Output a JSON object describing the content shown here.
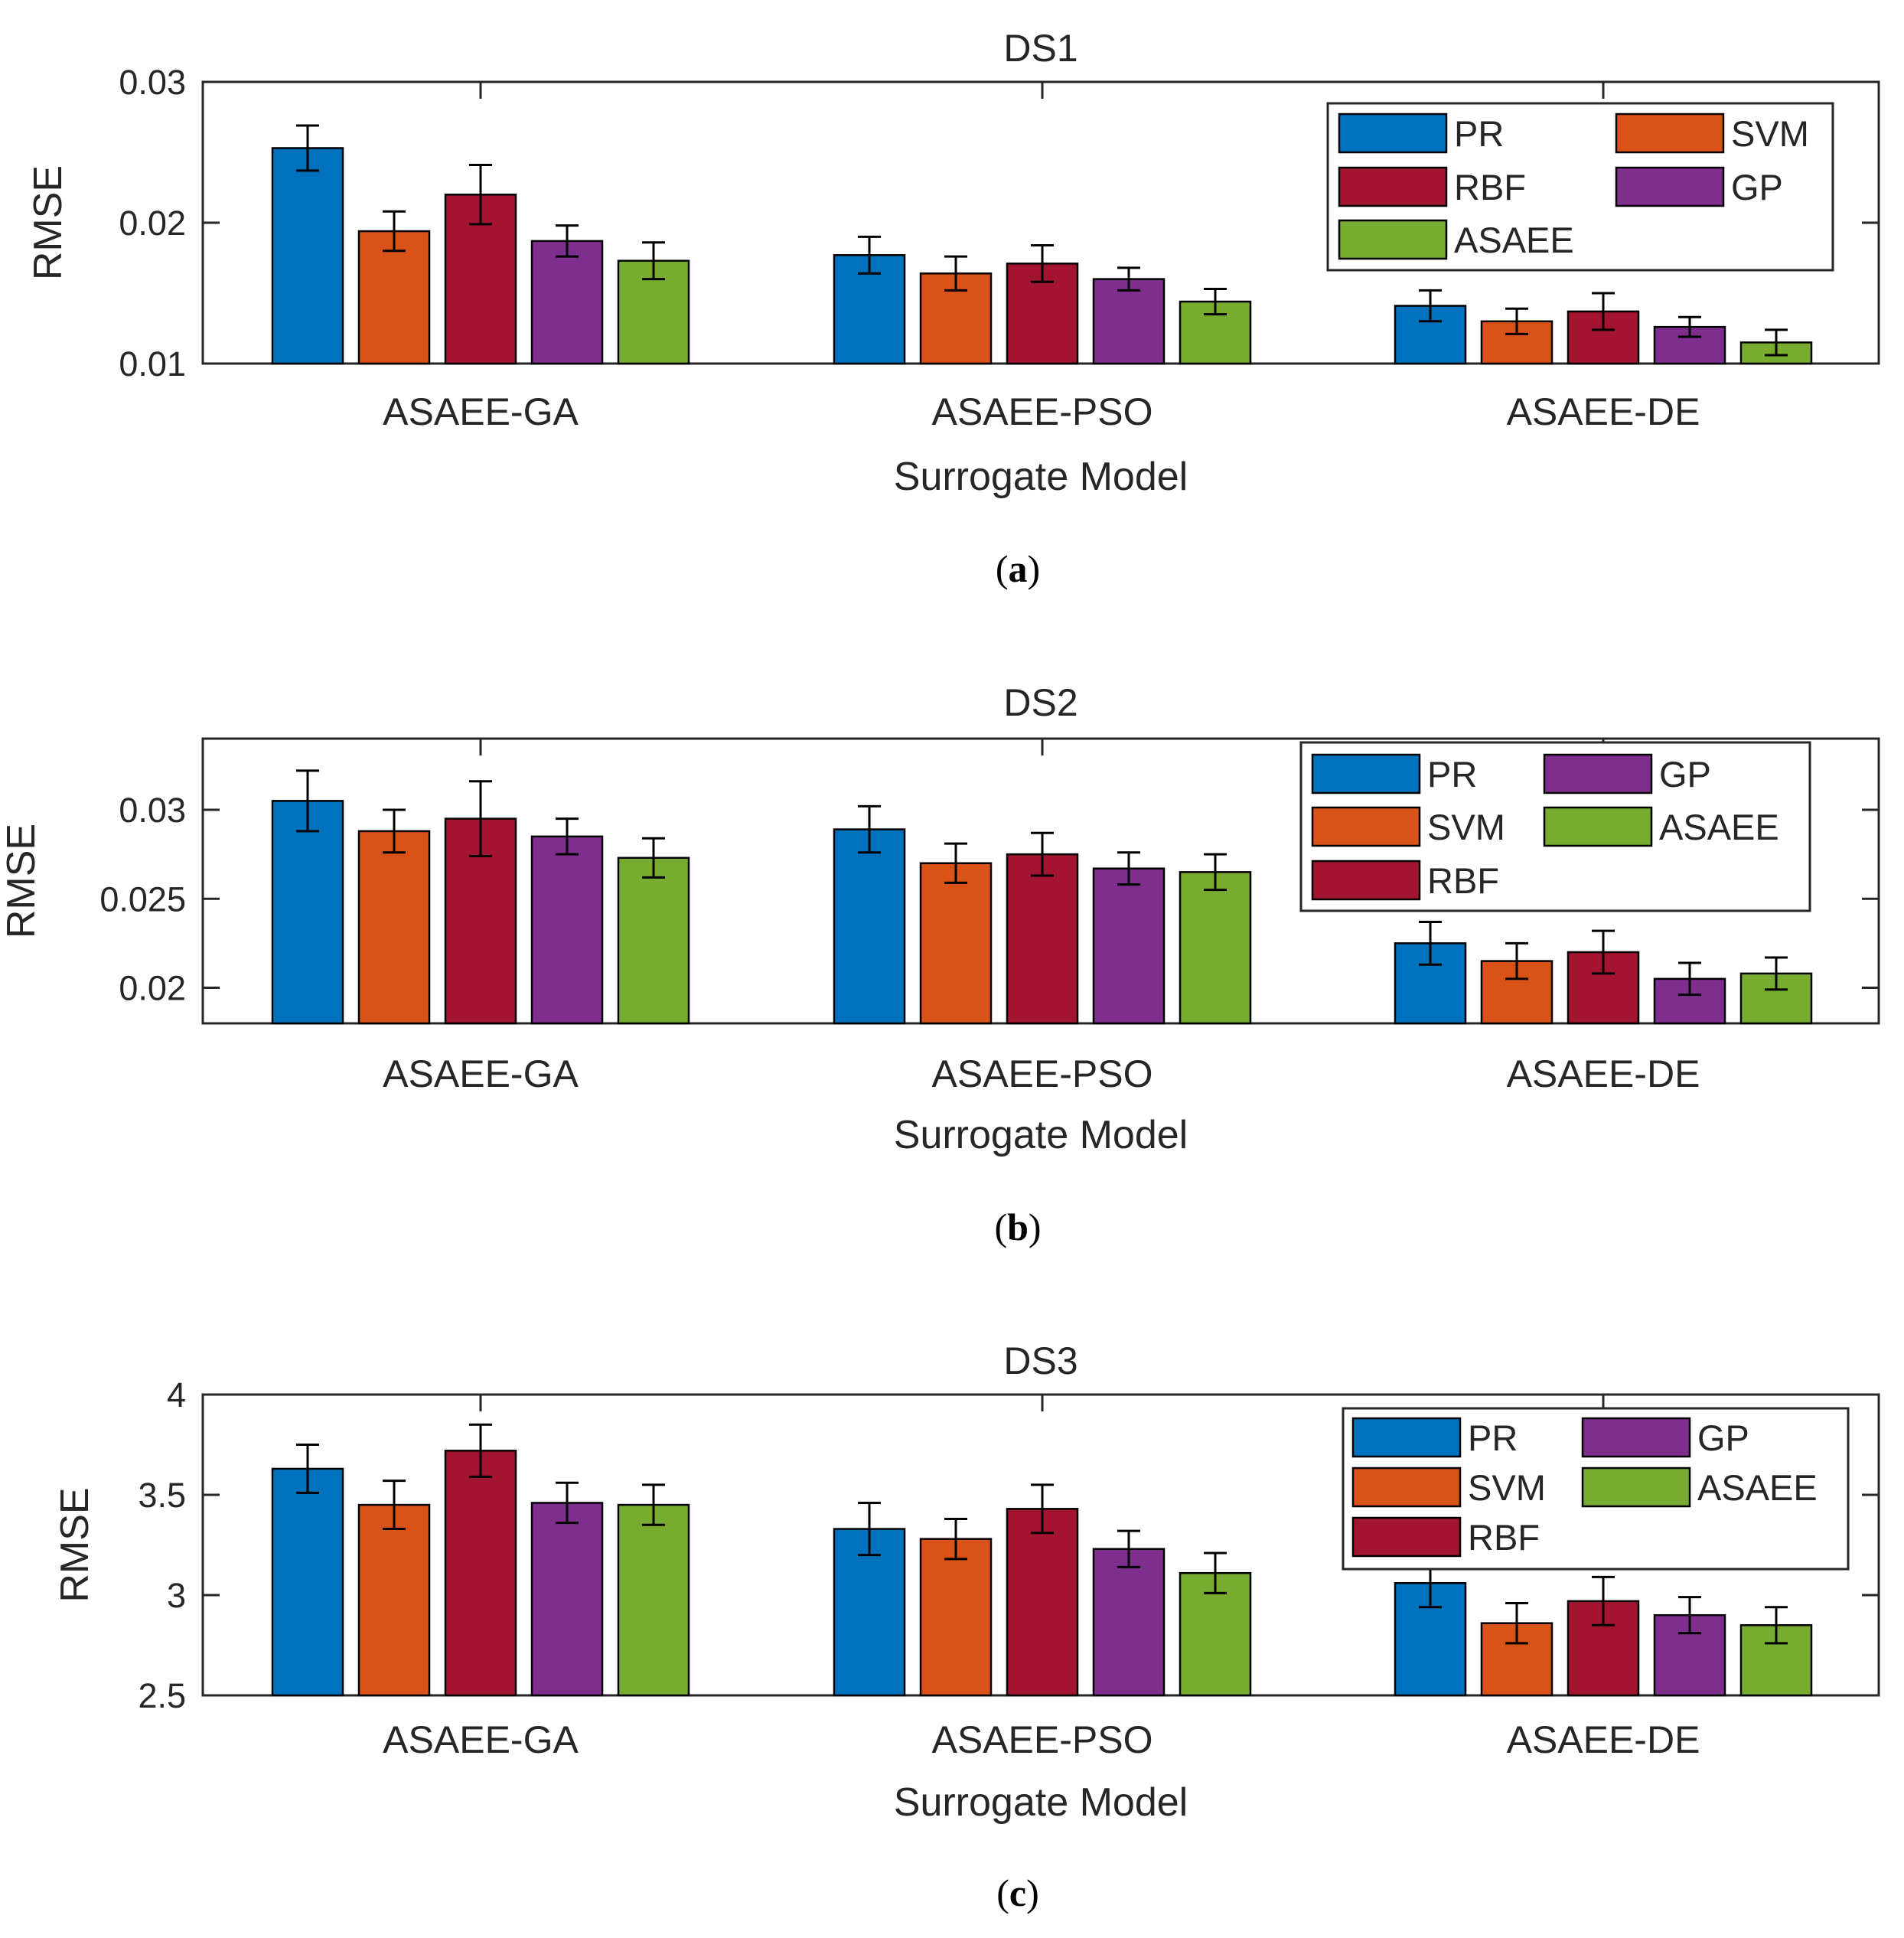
{
  "figure": {
    "captions": [
      "(a)",
      "(b)",
      "(c)"
    ]
  },
  "legend_order_by_panel": [
    [
      "PR",
      "SVM",
      "RBF",
      "GP",
      "ASAEE"
    ],
    [
      "PR",
      "GP",
      "SVM",
      "ASAEE",
      "RBF"
    ],
    [
      "PR",
      "GP",
      "SVM",
      "ASAEE",
      "RBF"
    ]
  ],
  "colors": {
    "PR": "#0072BD",
    "SVM": "#D95319",
    "RBF": "#A2142F",
    "GP": "#7E2F8E",
    "ASAEE": "#77AC30"
  },
  "chart_data": [
    {
      "type": "bar",
      "title": "DS1",
      "xlabel": "Surrogate Model",
      "ylabel": "RMSE",
      "ylim": [
        0.01,
        0.03
      ],
      "yticks": [
        0.01,
        0.02,
        0.03
      ],
      "ytick_labels": [
        "0.01",
        "0.02",
        "0.03"
      ],
      "categories": [
        "ASAEE-GA",
        "ASAEE-PSO",
        "ASAEE-DE"
      ],
      "legend_position": "top-right",
      "series": [
        {
          "name": "PR",
          "values": [
            0.0253,
            0.0177,
            0.0141
          ],
          "errors": [
            0.0016,
            0.0013,
            0.0011
          ]
        },
        {
          "name": "SVM",
          "values": [
            0.0194,
            0.0164,
            0.013
          ],
          "errors": [
            0.0014,
            0.0012,
            0.0009
          ]
        },
        {
          "name": "RBF",
          "values": [
            0.022,
            0.0171,
            0.0137
          ],
          "errors": [
            0.0021,
            0.0013,
            0.0013
          ]
        },
        {
          "name": "GP",
          "values": [
            0.0187,
            0.016,
            0.0126
          ],
          "errors": [
            0.0011,
            0.0008,
            0.0007
          ]
        },
        {
          "name": "ASAEE",
          "values": [
            0.0173,
            0.0144,
            0.0115
          ],
          "errors": [
            0.0013,
            0.0009,
            0.0009
          ]
        }
      ]
    },
    {
      "type": "bar",
      "title": "DS2",
      "xlabel": "Surrogate Model",
      "ylabel": "RMSE",
      "ylim": [
        0.018,
        0.034
      ],
      "yticks": [
        0.02,
        0.025,
        0.03
      ],
      "ytick_labels": [
        "0.02",
        "0.025",
        "0.03"
      ],
      "categories": [
        "ASAEE-GA",
        "ASAEE-PSO",
        "ASAEE-DE"
      ],
      "legend_position": "top-right",
      "series": [
        {
          "name": "PR",
          "values": [
            0.0305,
            0.0289,
            0.0225
          ],
          "errors": [
            0.0017,
            0.0013,
            0.0012
          ]
        },
        {
          "name": "SVM",
          "values": [
            0.0288,
            0.027,
            0.0215
          ],
          "errors": [
            0.0012,
            0.0011,
            0.001
          ]
        },
        {
          "name": "RBF",
          "values": [
            0.0295,
            0.0275,
            0.022
          ],
          "errors": [
            0.0021,
            0.0012,
            0.0012
          ]
        },
        {
          "name": "GP",
          "values": [
            0.0285,
            0.0267,
            0.0205
          ],
          "errors": [
            0.001,
            0.0009,
            0.0009
          ]
        },
        {
          "name": "ASAEE",
          "values": [
            0.0273,
            0.0265,
            0.0208
          ],
          "errors": [
            0.0011,
            0.001,
            0.0009
          ]
        }
      ]
    },
    {
      "type": "bar",
      "title": "DS3",
      "xlabel": "Surrogate Model",
      "ylabel": "RMSE",
      "ylim": [
        2.5,
        4.0
      ],
      "yticks": [
        2.5,
        3.0,
        3.5,
        4.0
      ],
      "ytick_labels": [
        "2.5",
        "3",
        "3.5",
        "4"
      ],
      "categories": [
        "ASAEE-GA",
        "ASAEE-PSO",
        "ASAEE-DE"
      ],
      "legend_position": "top-right",
      "series": [
        {
          "name": "PR",
          "values": [
            3.63,
            3.33,
            3.06
          ],
          "errors": [
            0.12,
            0.13,
            0.12
          ]
        },
        {
          "name": "SVM",
          "values": [
            3.45,
            3.28,
            2.86
          ],
          "errors": [
            0.12,
            0.1,
            0.1
          ]
        },
        {
          "name": "RBF",
          "values": [
            3.72,
            3.43,
            2.97
          ],
          "errors": [
            0.13,
            0.12,
            0.12
          ]
        },
        {
          "name": "GP",
          "values": [
            3.46,
            3.23,
            2.9
          ],
          "errors": [
            0.1,
            0.09,
            0.09
          ]
        },
        {
          "name": "ASAEE",
          "values": [
            3.45,
            3.11,
            2.85
          ],
          "errors": [
            0.1,
            0.1,
            0.09
          ]
        }
      ]
    }
  ]
}
